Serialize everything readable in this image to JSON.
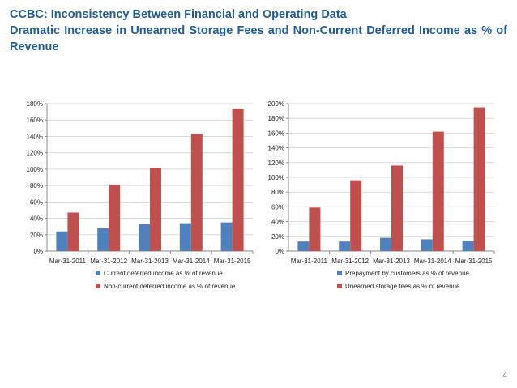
{
  "slide": {
    "title_line1": "CCBC: Inconsistency Between Financial and Operating Data",
    "title_line2": "Dramatic Increase in Unearned Storage Fees and Non-Current Deferred Income as % of",
    "title_line3": "Revenue",
    "page_number": "4"
  },
  "colors": {
    "blue": "#4f81bd",
    "red": "#c0504d",
    "title": "#1f5c99",
    "grid": "#d9d9d9",
    "axis": "#888888"
  },
  "chart_data": [
    {
      "type": "bar",
      "categories": [
        "Mar-31-2011",
        "Mar-31-2012",
        "Mar-31-2013",
        "Mar-31-2014",
        "Mar-31-2015"
      ],
      "series": [
        {
          "name": "Current deferred income as % of revenue",
          "values": [
            24,
            28,
            33,
            34,
            35
          ],
          "color": "#4f81bd"
        },
        {
          "name": "Non-current deferred income as % of revenue",
          "values": [
            47,
            81,
            101,
            143,
            174
          ],
          "color": "#c0504d"
        }
      ],
      "ylim": [
        0,
        180
      ],
      "yticks": [
        0,
        20,
        40,
        60,
        80,
        100,
        120,
        140,
        160,
        180
      ],
      "ytick_suffix": "%",
      "grid": true,
      "legend": "bottom"
    },
    {
      "type": "bar",
      "categories": [
        "Mar-31-2011",
        "Mar-31-2012",
        "Mar-31-2013",
        "Mar-31-2014",
        "Mar-31-2015"
      ],
      "series": [
        {
          "name": "Prepayment by customers as % of revenue",
          "values": [
            13,
            13,
            18,
            16,
            14
          ],
          "color": "#4f81bd"
        },
        {
          "name": "Unearned storage fees as % of revenue",
          "values": [
            59,
            96,
            116,
            162,
            195
          ],
          "color": "#c0504d"
        }
      ],
      "ylim": [
        0,
        200
      ],
      "yticks": [
        0,
        20,
        40,
        60,
        80,
        100,
        120,
        140,
        160,
        180,
        200
      ],
      "ytick_suffix": "%",
      "grid": true,
      "legend": "bottom"
    }
  ]
}
